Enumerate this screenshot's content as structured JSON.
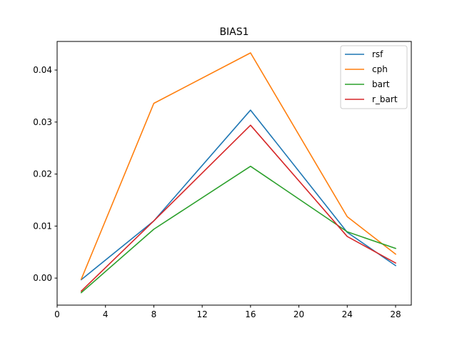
{
  "chart_data": {
    "type": "line",
    "title": "BIAS1",
    "xlabel": "",
    "ylabel": "",
    "x": [
      2,
      8,
      16,
      24,
      28
    ],
    "xlim": [
      0,
      29.3
    ],
    "ylim": [
      -0.0052,
      0.0455
    ],
    "xticks": [
      0,
      4,
      8,
      12,
      16,
      20,
      24,
      28
    ],
    "yticks": [
      0.0,
      0.01,
      0.02,
      0.03,
      0.04
    ],
    "ytick_labels": [
      "0.00",
      "0.01",
      "0.02",
      "0.03",
      "0.04"
    ],
    "grid": false,
    "legend_position": "top-right",
    "series": [
      {
        "name": "rsf",
        "color": "#1f77b4",
        "values": [
          -0.0003,
          0.011,
          0.0323,
          0.0088,
          0.0024
        ]
      },
      {
        "name": "cph",
        "color": "#ff7f0e",
        "values": [
          -0.0002,
          0.0336,
          0.0433,
          0.0118,
          0.0046
        ]
      },
      {
        "name": "bart",
        "color": "#2ca02c",
        "values": [
          -0.0028,
          0.0094,
          0.0215,
          0.0089,
          0.0057
        ]
      },
      {
        "name": "r_bart",
        "color": "#d62728",
        "values": [
          -0.0025,
          0.011,
          0.0294,
          0.008,
          0.0029
        ]
      }
    ]
  }
}
